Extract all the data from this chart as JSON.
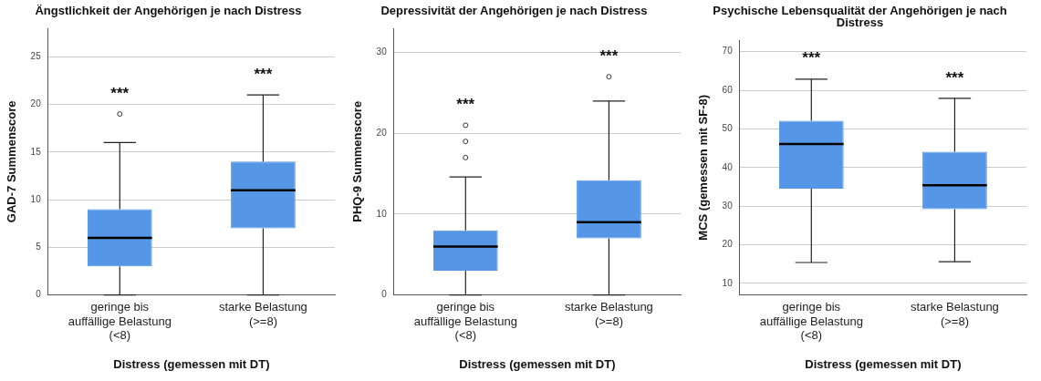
{
  "chart_data": [
    {
      "type": "box",
      "title": "Ängstlichkeit der Angehörigen je nach Distress",
      "xlabel": "Distress (gemessen mit DT)",
      "ylabel": "GAD-7 Summenscore",
      "categories": [
        "geringe bis auffällige Belastung (<8)",
        "starke Belastung (>=8)"
      ],
      "ylim": [
        0,
        28
      ],
      "yticks": [
        0,
        5,
        10,
        15,
        20,
        25
      ],
      "grid": "y",
      "series": [
        {
          "color": "#5596e6",
          "boxes": [
            {
              "low": 0,
              "q1": 3,
              "median": 6,
              "q3": 9,
              "high": 16,
              "outliers": [
                19
              ]
            },
            {
              "low": 0,
              "q1": 7,
              "median": 11,
              "q3": 14,
              "high": 21
            }
          ]
        }
      ],
      "annotations": [
        "***",
        "***"
      ]
    },
    {
      "type": "box",
      "title": "Depressivität der Angehörigen je nach Distress",
      "xlabel": "Distress (gemessen mit DT)",
      "ylabel": "PHQ-9 Summenscore",
      "categories": [
        "geringe bis auffällige Belastung (<8)",
        "starke Belastung (>=8)"
      ],
      "ylim": [
        0,
        33
      ],
      "yticks": [
        0,
        10,
        20,
        30
      ],
      "grid": "y",
      "series": [
        {
          "color": "#5596e6",
          "boxes": [
            {
              "low": 0,
              "q1": 3,
              "median": 6,
              "q3": 8,
              "high": 14.6,
              "outliers": [
                17,
                19,
                21
              ]
            },
            {
              "low": 0,
              "q1": 7,
              "median": 9,
              "q3": 14.2,
              "high": 24,
              "outliers": [
                27
              ]
            }
          ]
        }
      ],
      "annotations": [
        "***",
        "***"
      ]
    },
    {
      "type": "box",
      "title": "Psychische Lebensqualität der Angehörigen je nach Distress",
      "xlabel": "Distress (gemessen mit DT)",
      "ylabel": "MCS (gemessen mit SF-8)",
      "categories": [
        "geringe bis auffällige Belastung (<8)",
        "starke Belastung (>=8)"
      ],
      "ylim": [
        7,
        73
      ],
      "yticks": [
        10,
        20,
        30,
        40,
        50,
        60,
        70
      ],
      "grid": "y",
      "series": [
        {
          "color": "#5596e6",
          "boxes": [
            {
              "low": 15.4,
              "q1": 34.5,
              "median": 46.1,
              "q3": 52.1,
              "high": 62.9
            },
            {
              "low": 15.6,
              "q1": 29.2,
              "median": 35.4,
              "q3": 44.1,
              "high": 57.9
            }
          ]
        }
      ],
      "annotations": [
        "***",
        "***"
      ]
    }
  ]
}
